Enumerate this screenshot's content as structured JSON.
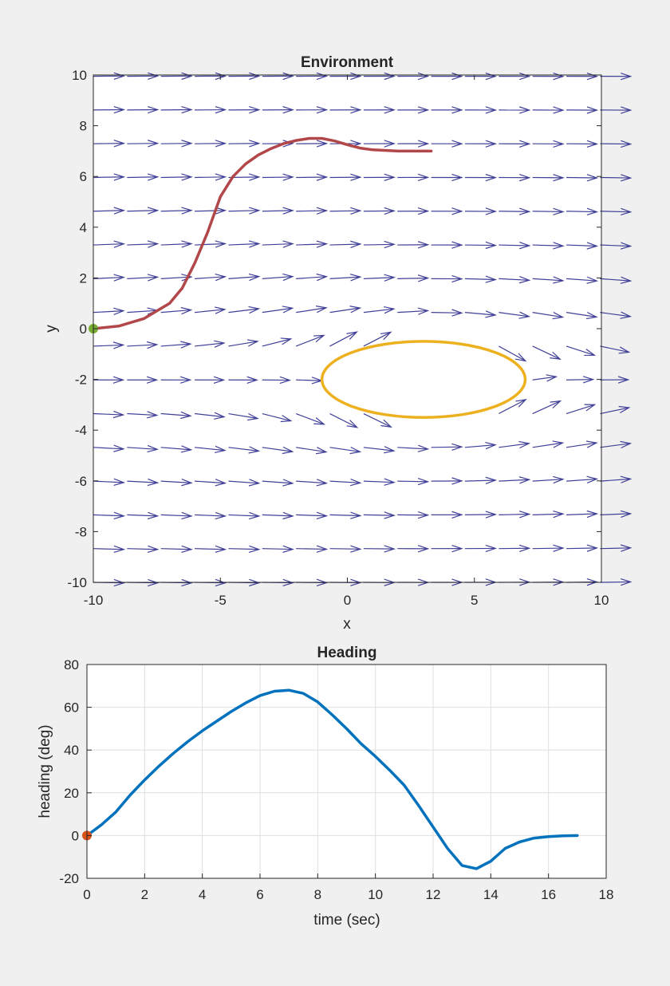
{
  "figure": {
    "background": "#f0f0f0"
  },
  "chart_data": [
    {
      "type": "quiver",
      "title": "Environment",
      "xlabel": "x",
      "ylabel": "y",
      "xlim": [
        -10,
        10
      ],
      "ylim": [
        -10,
        10
      ],
      "xticks": [
        -10,
        -5,
        0,
        5,
        10
      ],
      "yticks": [
        -10,
        -8,
        -6,
        -4,
        -2,
        0,
        2,
        4,
        6,
        8,
        10
      ],
      "grid": false,
      "colors": {
        "arrows": "#3f3f97",
        "trajectory": "#b2474a",
        "obstacle": "#edb120",
        "start": "#77ac30"
      },
      "vector_field": {
        "description_kind": "uniform flow along +x deflected around an elliptical obstacle",
        "x_spacing": 1.33,
        "y_spacing": 1.33,
        "flow": [
          1,
          0
        ]
      },
      "obstacle": {
        "shape": "ellipse",
        "center": [
          3,
          -2
        ],
        "radii": [
          4,
          1.5
        ]
      },
      "trajectory": {
        "x": [
          -10,
          -9,
          -8,
          -7,
          -6.5,
          -6,
          -5.5,
          -5,
          -4.5,
          -4,
          -3.5,
          -3,
          -2.5,
          -2,
          -1.5,
          -1,
          -0.5,
          0,
          0.5,
          1,
          2,
          3.3
        ],
        "y": [
          0,
          0.1,
          0.4,
          1.0,
          1.6,
          2.6,
          3.8,
          5.2,
          6.0,
          6.5,
          6.85,
          7.1,
          7.3,
          7.42,
          7.5,
          7.5,
          7.4,
          7.25,
          7.12,
          7.05,
          7.0,
          7.0
        ]
      },
      "start_point": [
        -10,
        0
      ]
    },
    {
      "type": "line",
      "title": "Heading",
      "xlabel": "time (sec)",
      "ylabel": "heading (deg)",
      "xlim": [
        0,
        18
      ],
      "ylim": [
        -20,
        80
      ],
      "xticks": [
        0,
        2,
        4,
        6,
        8,
        10,
        12,
        14,
        16,
        18
      ],
      "yticks": [
        -20,
        0,
        20,
        40,
        60,
        80
      ],
      "grid": true,
      "colors": {
        "line": "#0072bd",
        "start": "#d95319"
      },
      "series": [
        {
          "x": [
            0,
            0.5,
            1,
            1.5,
            2,
            2.5,
            3,
            3.5,
            4,
            4.5,
            5,
            5.5,
            6,
            6.5,
            7,
            7.5,
            8,
            8.5,
            9,
            9.5,
            10,
            10.5,
            11,
            11.5,
            12,
            12.5,
            13,
            13.5,
            14,
            14.5,
            15,
            15.5,
            16,
            16.5,
            17
          ],
          "y": [
            0,
            5,
            11,
            19,
            26,
            32.5,
            38.5,
            44,
            49,
            53.5,
            58,
            62,
            65.5,
            67.5,
            68,
            66.5,
            62.5,
            56.5,
            50,
            43,
            37,
            30.5,
            23.5,
            14,
            4,
            -6,
            -14,
            -15.5,
            -12,
            -6,
            -3,
            -1.2,
            -0.5,
            -0.1,
            0
          ]
        }
      ],
      "start_point": [
        0,
        0
      ]
    }
  ]
}
